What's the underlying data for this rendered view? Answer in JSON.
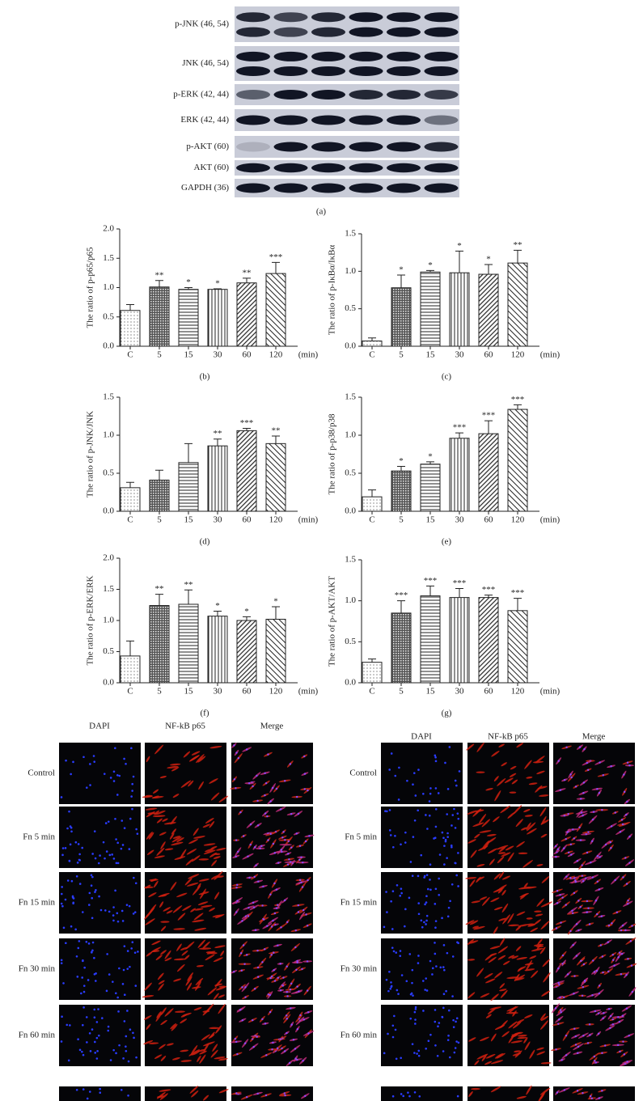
{
  "blot": {
    "labels": [
      "p-JNK (46, 54)",
      "JNK (46, 54)",
      "p-ERK (42, 44)",
      "ERK (42, 44)",
      "p-AKT (60)",
      "AKT (60)",
      "GAPDH (36)"
    ],
    "caption": "(a)"
  },
  "chart_data": [
    {
      "type": "bar",
      "caption": "(b)",
      "y_label": "The ratio of p-p65/p65",
      "x_unit": "(min)",
      "categories": [
        "C",
        "5",
        "15",
        "30",
        "60",
        "120"
      ],
      "values": [
        0.61,
        1.01,
        0.97,
        0.97,
        1.08,
        1.24
      ],
      "errors": [
        0.1,
        0.11,
        0.03,
        0.01,
        0.08,
        0.19
      ],
      "annotations": [
        null,
        "**",
        "*",
        "*",
        "**",
        "***"
      ],
      "ylim": [
        0,
        2
      ],
      "yticks": [
        {
          "value": 0,
          "label": "0.0"
        },
        0.5,
        {
          "value": 1,
          "label": "1.0"
        },
        1.5,
        {
          "value": 2,
          "label": "2.0"
        }
      ]
    },
    {
      "type": "bar",
      "caption": "(c)",
      "y_label": "The ratio of p-IκBα/IκBα",
      "x_unit": "(min)",
      "categories": [
        "C",
        "5",
        "15",
        "30",
        "60",
        "120"
      ],
      "values": [
        0.07,
        0.78,
        0.99,
        0.98,
        0.96,
        1.11
      ],
      "errors": [
        0.04,
        0.17,
        0.02,
        0.29,
        0.13,
        0.17
      ],
      "annotations": [
        null,
        "*",
        "*",
        "*",
        "*",
        "**"
      ],
      "ylim": [
        0,
        1.5
      ],
      "yticks": [
        {
          "value": 0,
          "label": "0.0"
        },
        0.5,
        {
          "value": 1,
          "label": "1.0"
        },
        1.5
      ]
    },
    {
      "type": "bar",
      "caption": "(d)",
      "y_label": "The ratio of p-JNK/JNK",
      "x_unit": "(min)",
      "categories": [
        "C",
        "5",
        "15",
        "30",
        "60",
        "120"
      ],
      "values": [
        0.31,
        0.41,
        0.64,
        0.86,
        1.06,
        0.89
      ],
      "errors": [
        0.07,
        0.13,
        0.25,
        0.09,
        0.03,
        0.1
      ],
      "annotations": [
        null,
        null,
        null,
        "**",
        "***",
        "**"
      ],
      "ylim": [
        0,
        1.5
      ],
      "yticks": [
        {
          "value": 0,
          "label": "0.0"
        },
        0.5,
        {
          "value": 1,
          "label": "1.0"
        },
        1.5
      ]
    },
    {
      "type": "bar",
      "caption": "(e)",
      "y_label": "The ratio of p-p38/p38",
      "x_unit": "(min)",
      "categories": [
        "C",
        "5",
        "15",
        "30",
        "60",
        "120"
      ],
      "values": [
        0.19,
        0.53,
        0.62,
        0.96,
        1.02,
        1.34
      ],
      "errors": [
        0.09,
        0.06,
        0.03,
        0.07,
        0.17,
        0.06
      ],
      "annotations": [
        null,
        "*",
        "*",
        "***",
        "***",
        "***"
      ],
      "ylim": [
        0,
        1.5
      ],
      "yticks": [
        {
          "value": 0,
          "label": "0.0"
        },
        0.5,
        {
          "value": 1,
          "label": "1.0"
        },
        1.5
      ]
    },
    {
      "type": "bar",
      "caption": "(f)",
      "y_label": "The ratio of p-ERK/ERK",
      "x_unit": "(min)",
      "categories": [
        "C",
        "5",
        "15",
        "30",
        "60",
        "120"
      ],
      "values": [
        0.43,
        1.24,
        1.26,
        1.07,
        1.0,
        1.02
      ],
      "errors": [
        0.24,
        0.18,
        0.23,
        0.08,
        0.06,
        0.2
      ],
      "annotations": [
        null,
        "**",
        "**",
        "*",
        "*",
        "*"
      ],
      "ylim": [
        0,
        2
      ],
      "yticks": [
        {
          "value": 0,
          "label": "0.0"
        },
        0.5,
        {
          "value": 1,
          "label": "1.0"
        },
        1.5,
        {
          "value": 2,
          "label": "2.0"
        }
      ]
    },
    {
      "type": "bar",
      "caption": "(g)",
      "y_label": "The ratio of p-AKT/AKT",
      "x_unit": "(min)",
      "categories": [
        "C",
        "5",
        "15",
        "30",
        "60",
        "120"
      ],
      "values": [
        0.25,
        0.85,
        1.06,
        1.04,
        1.04,
        0.88
      ],
      "errors": [
        0.04,
        0.15,
        0.12,
        0.11,
        0.03,
        0.15
      ],
      "annotations": [
        null,
        "***",
        "***",
        "***",
        "***",
        "***"
      ],
      "ylim": [
        0,
        1.5
      ],
      "yticks": [
        {
          "value": 0,
          "label": "0.0"
        },
        0.5,
        {
          "value": 1,
          "label": "1.0"
        },
        1.5
      ]
    }
  ],
  "microscopy": {
    "panels": [
      {
        "columns": [
          "DAPI",
          "NF-kB p65",
          "Merge"
        ],
        "rows": [
          "Control",
          "Fn 5 min",
          "Fn 15 min",
          "Fn 30 min",
          "Fn 60 min"
        ]
      },
      {
        "columns": [
          "DAPI",
          "NF-kB p65",
          "Merge"
        ],
        "rows": [
          "Control",
          "Fn 5 min",
          "Fn 15 min",
          "Fn 30 min",
          "Fn 60 min"
        ]
      }
    ]
  }
}
